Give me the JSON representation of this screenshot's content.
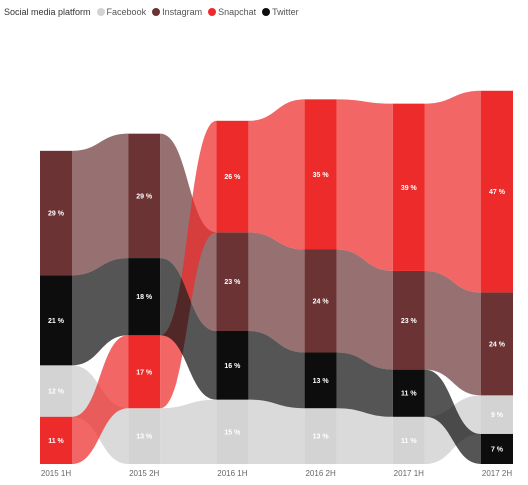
{
  "legend": {
    "title": "Social media platform",
    "entries": [
      {
        "name": "Facebook",
        "color": "#d3d3d3"
      },
      {
        "name": "Instagram",
        "color": "#6b3334"
      },
      {
        "name": "Snapchat",
        "color": "#ee2b2b"
      },
      {
        "name": "Twitter",
        "color": "#0d0d0d"
      }
    ]
  },
  "chart_data": {
    "type": "ribbon",
    "categories": [
      "2015 1H",
      "2015 2H",
      "2016 1H",
      "2016 2H",
      "2017 1H",
      "2017 2H"
    ],
    "series": [
      {
        "name": "Facebook",
        "color": "#d3d3d3",
        "values": [
          12,
          13,
          15,
          13,
          11,
          9
        ],
        "labels": [
          "12 %",
          "13 %",
          "15 %",
          "13 %",
          "11 %",
          "9 %"
        ]
      },
      {
        "name": "Instagram",
        "color": "#6b3334",
        "values": [
          29,
          29,
          23,
          24,
          23,
          24
        ],
        "labels": [
          "29 %",
          "29 %",
          "23 %",
          "24 %",
          "23 %",
          "24 %"
        ]
      },
      {
        "name": "Snapchat",
        "color": "#ee2b2b",
        "values": [
          11,
          17,
          26,
          35,
          39,
          47
        ],
        "labels": [
          "11 %",
          "17 %",
          "26 %",
          "35 %",
          "39 %",
          "47 %"
        ]
      },
      {
        "name": "Twitter",
        "color": "#0d0d0d",
        "values": [
          21,
          18,
          16,
          13,
          11,
          7
        ],
        "labels": [
          "21 %",
          "18 %",
          "16 %",
          "13 %",
          "11 %",
          "7 %"
        ]
      }
    ],
    "order_top_to_bottom": [
      [
        "Instagram",
        "Twitter",
        "Facebook",
        "Snapchat"
      ],
      [
        "Instagram",
        "Twitter",
        "Snapchat",
        "Facebook"
      ],
      [
        "Snapchat",
        "Instagram",
        "Twitter",
        "Facebook"
      ],
      [
        "Snapchat",
        "Instagram",
        "Twitter",
        "Facebook"
      ],
      [
        "Snapchat",
        "Instagram",
        "Twitter",
        "Facebook"
      ],
      [
        "Snapchat",
        "Instagram",
        "Facebook",
        "Twitter"
      ]
    ],
    "legend_position": "top-left",
    "grid": false
  }
}
